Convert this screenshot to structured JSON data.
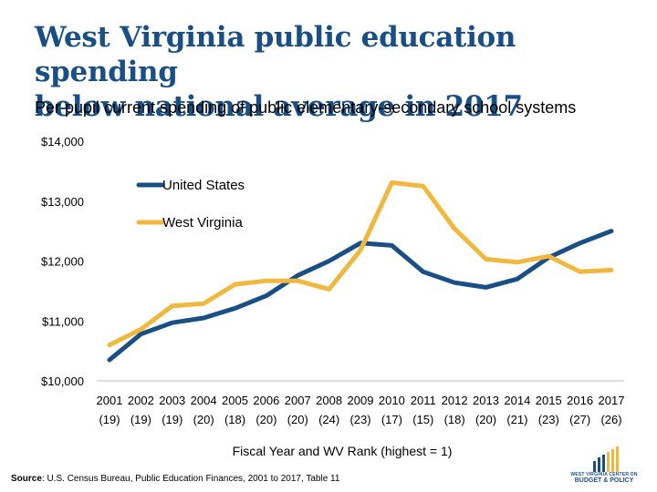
{
  "header": {
    "title_line1": "West Virginia public education spending",
    "title_line2": "below national average in 2017",
    "subtitle": "Per pupil current spending of public elementary-secondary school systems"
  },
  "chart_data": {
    "type": "line",
    "title": "West Virginia public education spending below national average in 2017",
    "subtitle": "Per pupil current spending of public elementary-secondary school systems",
    "xlabel": "Fiscal Year and WV Rank (highest = 1)",
    "ylabel": "",
    "ylim": [
      10000,
      14000
    ],
    "yticks": [
      10000,
      11000,
      12000,
      13000,
      14000
    ],
    "ytick_labels": [
      "$10,000",
      "$11,000",
      "$12,000",
      "$13,000",
      "$14,000"
    ],
    "categories": [
      "2001",
      "2002",
      "2003",
      "2004",
      "2005",
      "2006",
      "2007",
      "2008",
      "2009",
      "2010",
      "2011",
      "2012",
      "2013",
      "2014",
      "2015",
      "2016",
      "2017"
    ],
    "ranks": [
      "(19)",
      "(19)",
      "(19)",
      "(20)",
      "(18)",
      "(20)",
      "(20)",
      "(24)",
      "(23)",
      "(17)",
      "(15)",
      "(18)",
      "(20)",
      "(21)",
      "(23)",
      "(27)",
      "(26)"
    ],
    "legend_position": "top-left",
    "series": [
      {
        "name": "United States",
        "color": "#1a4f86",
        "values": [
          10350,
          10780,
          10970,
          11050,
          11210,
          11420,
          11760,
          12000,
          12300,
          12260,
          11820,
          11640,
          11560,
          11700,
          12060,
          12300,
          12500
        ]
      },
      {
        "name": "West Virginia",
        "color": "#f0b83e",
        "values": [
          10600,
          10860,
          11250,
          11290,
          11610,
          11670,
          11670,
          11530,
          12180,
          13310,
          13250,
          12540,
          12030,
          11980,
          12080,
          11820,
          11850
        ]
      }
    ]
  },
  "footer": {
    "source_label": "Source",
    "source_text": ": U.S. Census Bureau, Public Education Finances, 2001 to 2017, Table 11",
    "logo_line1": "WEST VIRGINIA CENTER ON",
    "logo_line2": "BUDGET & POLICY",
    "logo_color": "#1a4f86",
    "logo_accent": "#f0b83e"
  }
}
